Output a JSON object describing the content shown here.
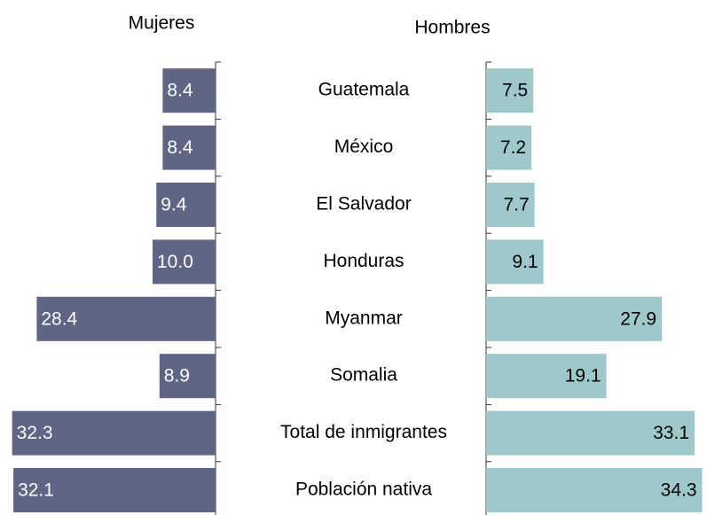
{
  "chart_data": {
    "type": "butterfly",
    "categories": [
      "Guatemala",
      "México",
      "El Salvador",
      "Honduras",
      "Myanmar",
      "Somalia",
      "Total de inmigrantes",
      "Población nativa"
    ],
    "series": [
      {
        "name": "Mujeres",
        "color": "#5f6584",
        "values": [
          8.4,
          8.4,
          9.4,
          10.0,
          28.4,
          8.9,
          32.3,
          32.1
        ],
        "value_labels": [
          "8.4",
          "8.4",
          "9.4",
          "10.0",
          "28.4",
          "8.9",
          "32.3",
          "32.1"
        ]
      },
      {
        "name": "Hombres",
        "color": "#9fc8cc",
        "values": [
          7.5,
          7.2,
          7.7,
          9.1,
          27.9,
          19.1,
          33.1,
          34.3
        ],
        "value_labels": [
          "7.5",
          "7.2",
          "7.7",
          "9.1",
          "27.9",
          "19.1",
          "33.1",
          "34.3"
        ]
      }
    ]
  }
}
